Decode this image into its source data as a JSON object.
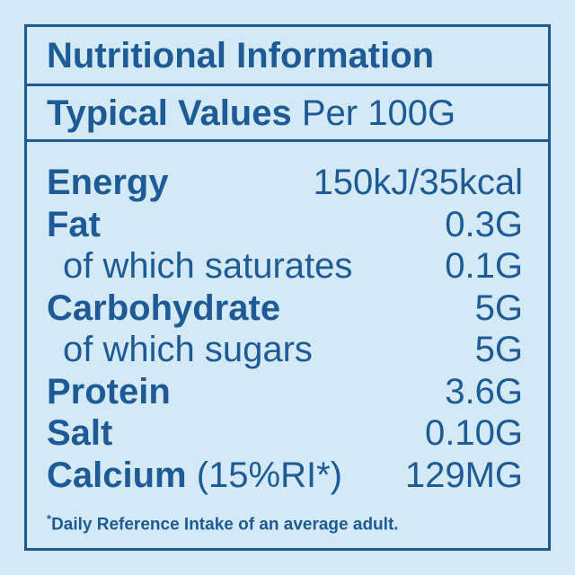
{
  "title": "Nutritional Information",
  "header": {
    "bold": "Typical Values",
    "regular": "Per 100G"
  },
  "rows": [
    {
      "name": "Energy",
      "value": "150kJ/35kcal",
      "bold": true
    },
    {
      "name": "Fat",
      "value": "0.3G",
      "bold": true
    },
    {
      "name": "of which saturates",
      "value": "0.1G",
      "bold": false
    },
    {
      "name": "Carbohydrate",
      "value": "5G",
      "bold": true
    },
    {
      "name": "of which sugars",
      "value": "5G",
      "bold": false
    },
    {
      "name": "Protein",
      "value": "3.6G",
      "bold": true
    },
    {
      "name": "Salt",
      "value": "0.10G",
      "bold": true
    },
    {
      "name": "Calcium",
      "note": "(15%RI*)",
      "value": "129MG",
      "bold": true
    }
  ],
  "footnote": {
    "mark": "*",
    "text": "Daily Reference Intake of an average adult."
  }
}
